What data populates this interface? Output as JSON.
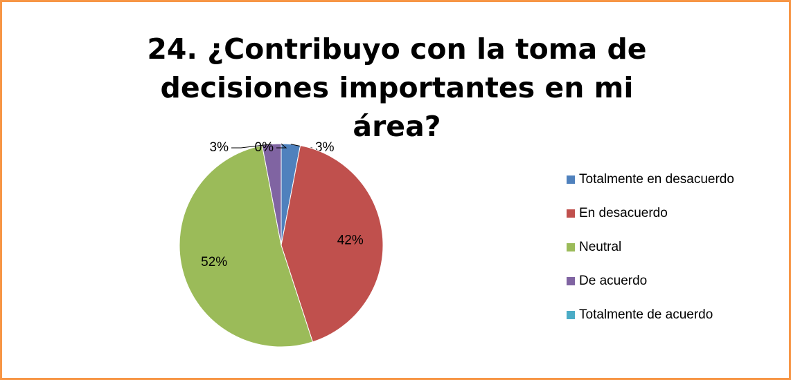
{
  "chart_data": {
    "type": "pie",
    "title": "24. ¿Contribuyo con la toma de decisiones importantes en mi área?",
    "categories": [
      "Totalmente en desacuerdo",
      "En desacuerdo",
      "Neutral",
      "De acuerdo",
      "Totalmente de acuerdo"
    ],
    "values": [
      3,
      42,
      52,
      3,
      0
    ],
    "value_labels": [
      "3%",
      "42%",
      "52%",
      "3%",
      "0%"
    ],
    "colors": [
      "#4f81bd",
      "#c0504d",
      "#9bbb59",
      "#8064a2",
      "#4bacc6"
    ],
    "legend": "right"
  }
}
